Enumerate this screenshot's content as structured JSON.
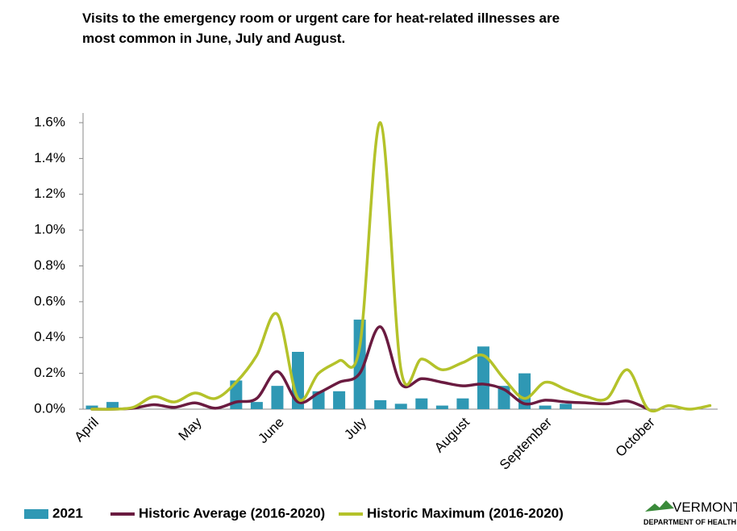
{
  "chart_data": {
    "type": "bar_line",
    "title_lines": [
      "Visits to the emergency room or urgent care for heat-related illnesses are",
      "most common in June, July and August."
    ],
    "categories": [
      "April",
      null,
      null,
      null,
      null,
      "May",
      null,
      null,
      null,
      "June",
      null,
      null,
      null,
      "July",
      null,
      null,
      null,
      null,
      "August",
      null,
      null,
      null,
      "September",
      null,
      null,
      null,
      null,
      "October",
      null,
      null,
      null
    ],
    "series": [
      {
        "name": "2021",
        "type": "bar",
        "color": "#2f98b4",
        "values": [
          0.02,
          0.04,
          0,
          0,
          0,
          0,
          0,
          0.16,
          0.04,
          0.13,
          0.32,
          0.1,
          0.1,
          0.5,
          0.05,
          0.03,
          0.06,
          0.02,
          0.06,
          0.35,
          0.13,
          0.2,
          0.02,
          0.03,
          null,
          null,
          null,
          null,
          null,
          null,
          null
        ]
      },
      {
        "name": "Historic Average (2016-2020)",
        "type": "line",
        "color": "#6a1b40",
        "values": [
          0,
          0,
          0.005,
          0.025,
          0.01,
          0.035,
          0.005,
          0.04,
          0.06,
          0.21,
          0.04,
          0.09,
          0.15,
          0.2,
          0.46,
          0.14,
          0.17,
          0.15,
          0.13,
          0.14,
          0.11,
          0.03,
          0.05,
          0.04,
          0.035,
          0.03,
          0.045,
          0,
          null,
          null,
          null
        ]
      },
      {
        "name": "Historic Maximum (2016-2020)",
        "type": "line",
        "color": "#b4c22a",
        "values": [
          0,
          0,
          0.01,
          0.07,
          0.04,
          0.09,
          0.06,
          0.15,
          0.3,
          0.53,
          0.06,
          0.2,
          0.27,
          0.35,
          1.6,
          0.22,
          0.28,
          0.22,
          0.26,
          0.3,
          0.17,
          0.06,
          0.15,
          0.11,
          0.07,
          0.06,
          0.22,
          0,
          0.02,
          0,
          0.02
        ]
      }
    ],
    "ylim": [
      0,
      1.6
    ],
    "yticks": [
      {
        "value": 0,
        "label": "0.0%"
      },
      {
        "value": 0.2,
        "label": "0.2%"
      },
      {
        "value": 0.4,
        "label": "0.4%"
      },
      {
        "value": 0.6,
        "label": "0.6%"
      },
      {
        "value": 0.8,
        "label": "0.8%"
      },
      {
        "value": 1.0,
        "label": "1.0%"
      },
      {
        "value": 1.2,
        "label": "1.2%"
      },
      {
        "value": 1.4,
        "label": "1.4%"
      },
      {
        "value": 1.6,
        "label": "1.6%"
      }
    ],
    "legend": "bottom",
    "logo": {
      "name": "VERMONT",
      "subtitle": "DEPARTMENT OF HEALTH"
    }
  }
}
